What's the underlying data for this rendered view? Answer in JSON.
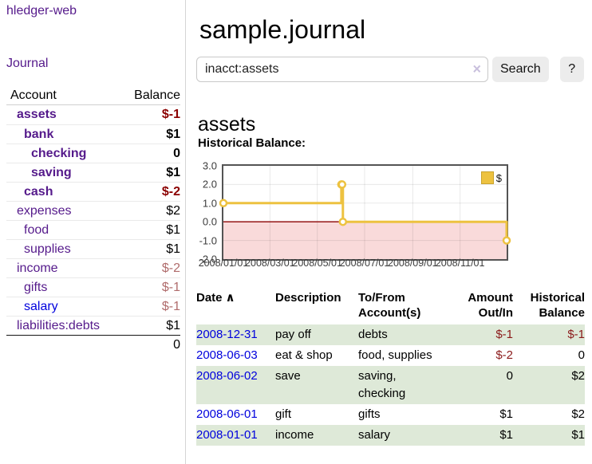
{
  "app": {
    "brand": "hledger-web"
  },
  "sidebar": {
    "journal_label": "Journal",
    "accounts": {
      "col_account": "Account",
      "col_balance": "Balance",
      "rows": [
        {
          "account": "assets",
          "depth": 0,
          "bold": true,
          "visited": true,
          "balance": "$-1",
          "balance_style": "neg"
        },
        {
          "account": "bank",
          "depth": 1,
          "bold": true,
          "visited": true,
          "balance": "$1",
          "balance_style": "pos"
        },
        {
          "account": "checking",
          "depth": 2,
          "bold": true,
          "visited": true,
          "balance": "0",
          "balance_style": "pos"
        },
        {
          "account": "saving",
          "depth": 2,
          "bold": true,
          "visited": true,
          "balance": "$1",
          "balance_style": "pos"
        },
        {
          "account": "cash",
          "depth": 1,
          "bold": true,
          "visited": true,
          "balance": "$-2",
          "balance_style": "neg"
        },
        {
          "account": "expenses",
          "depth": 0,
          "bold": false,
          "visited": true,
          "balance": "$2",
          "balance_style": "pos"
        },
        {
          "account": "food",
          "depth": 1,
          "bold": false,
          "visited": true,
          "balance": "$1",
          "balance_style": "pos"
        },
        {
          "account": "supplies",
          "depth": 1,
          "bold": false,
          "visited": true,
          "balance": "$1",
          "balance_style": "pos"
        },
        {
          "account": "income",
          "depth": 0,
          "bold": false,
          "visited": true,
          "balance": "$-2",
          "balance_style": "negdim"
        },
        {
          "account": "gifts",
          "depth": 1,
          "bold": false,
          "visited": true,
          "balance": "$-1",
          "balance_style": "negdim"
        },
        {
          "account": "salary",
          "depth": 1,
          "bold": false,
          "visited": false,
          "balance": "$-1",
          "balance_style": "negdim"
        },
        {
          "account": "liabilities:debts",
          "depth": 0,
          "bold": false,
          "visited": true,
          "balance": "$1",
          "balance_style": "pos"
        }
      ],
      "total": "0"
    }
  },
  "main": {
    "title": "sample.journal",
    "search": {
      "value": "inacct:assets",
      "clear_glyph": "×",
      "button_label": "Search",
      "help_label": "?"
    },
    "section_heading": "assets"
  },
  "chart_data": {
    "type": "line",
    "title": "Historical Balance:",
    "step": true,
    "ylim": [
      -2.0,
      3.0
    ],
    "yticks": [
      "3.0",
      "2.0",
      "1.0",
      "0.0",
      "-1.0",
      "-2.0"
    ],
    "ytick_values": [
      3,
      2,
      1,
      0,
      -1,
      -2
    ],
    "xticks": [
      "2008/01/01",
      "2008/03/01",
      "2008/05/01",
      "2008/07/01",
      "2008/09/01",
      "2008/11/01"
    ],
    "x_range": [
      "2008-01-01",
      "2008-12-31"
    ],
    "grid": true,
    "legend": {
      "label": "$",
      "position": "top-right"
    },
    "series": [
      {
        "name": "$",
        "color": "#edc240",
        "points": [
          {
            "date": "2008-01-01",
            "value": 1
          },
          {
            "date": "2008-06-01",
            "value": 2
          },
          {
            "date": "2008-06-02",
            "value": 2
          },
          {
            "date": "2008-06-03",
            "value": 0
          },
          {
            "date": "2008-12-31",
            "value": -1
          }
        ]
      }
    ],
    "negative_region_fill": "#f9dada",
    "zero_line_color": "#8b0000"
  },
  "register": {
    "headers": [
      {
        "lines": [
          "Date"
        ],
        "align": "left",
        "sort": "asc"
      },
      {
        "lines": [
          "Description"
        ],
        "align": "left"
      },
      {
        "lines": [
          "To/From",
          "Account(s)"
        ],
        "align": "left"
      },
      {
        "lines": [
          "Amount",
          "Out/In"
        ],
        "align": "right"
      },
      {
        "lines": [
          "Historical",
          "Balance"
        ],
        "align": "right"
      }
    ],
    "sort_caret": "∧",
    "rows": [
      {
        "date": "2008-12-31",
        "description": "pay off",
        "accounts": "debts",
        "amount": "$-1",
        "amount_neg": true,
        "balance": "$-1",
        "balance_neg": true,
        "shaded": true
      },
      {
        "date": "2008-06-03",
        "description": "eat & shop",
        "accounts": "food, supplies",
        "amount": "$-2",
        "amount_neg": true,
        "balance": "0",
        "balance_neg": false,
        "shaded": false
      },
      {
        "date": "2008-06-02",
        "description": "save",
        "accounts": "saving, checking",
        "amount": "0",
        "amount_neg": false,
        "balance": "$2",
        "balance_neg": false,
        "shaded": true
      },
      {
        "date": "2008-06-01",
        "description": "gift",
        "accounts": "gifts",
        "amount": "$1",
        "amount_neg": false,
        "balance": "$2",
        "balance_neg": false,
        "shaded": false
      },
      {
        "date": "2008-01-01",
        "description": "income",
        "accounts": "salary",
        "amount": "$1",
        "amount_neg": false,
        "balance": "$1",
        "balance_neg": false,
        "shaded": true
      }
    ]
  }
}
